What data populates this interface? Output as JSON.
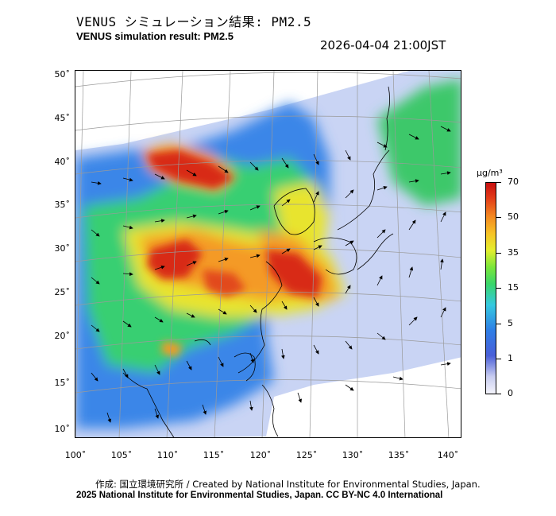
{
  "title_jp": "VENUS シミュレーション結果: PM2.5",
  "title_en": "VENUS simulation result: PM2.5",
  "timestamp": "2026-04-04 21:00JST",
  "axes": {
    "latitude_labels": [
      "50˚",
      "45˚",
      "40˚",
      "35˚",
      "30˚",
      "25˚",
      "20˚",
      "15˚",
      "10˚"
    ],
    "longitude_labels": [
      "100˚",
      "105˚",
      "110˚",
      "115˚",
      "120˚",
      "125˚",
      "130˚",
      "135˚",
      "140˚"
    ]
  },
  "colorbar": {
    "unit": "μg/m³",
    "ticks": [
      "70",
      "50",
      "35",
      "15",
      "5",
      "1",
      "0"
    ],
    "colors": [
      "#f4f4fb",
      "#4a5fd8",
      "#35c9e0",
      "#39d66a",
      "#e4ee2e",
      "#f48a22",
      "#c81010"
    ]
  },
  "footer": {
    "credit": "作成: 国立環境研究所 / Created by National Institute for Environmental Studies, Japan.",
    "license": "2025 National Institute for Environmental Studies, Japan. CC BY-NC 4.0 International"
  }
}
